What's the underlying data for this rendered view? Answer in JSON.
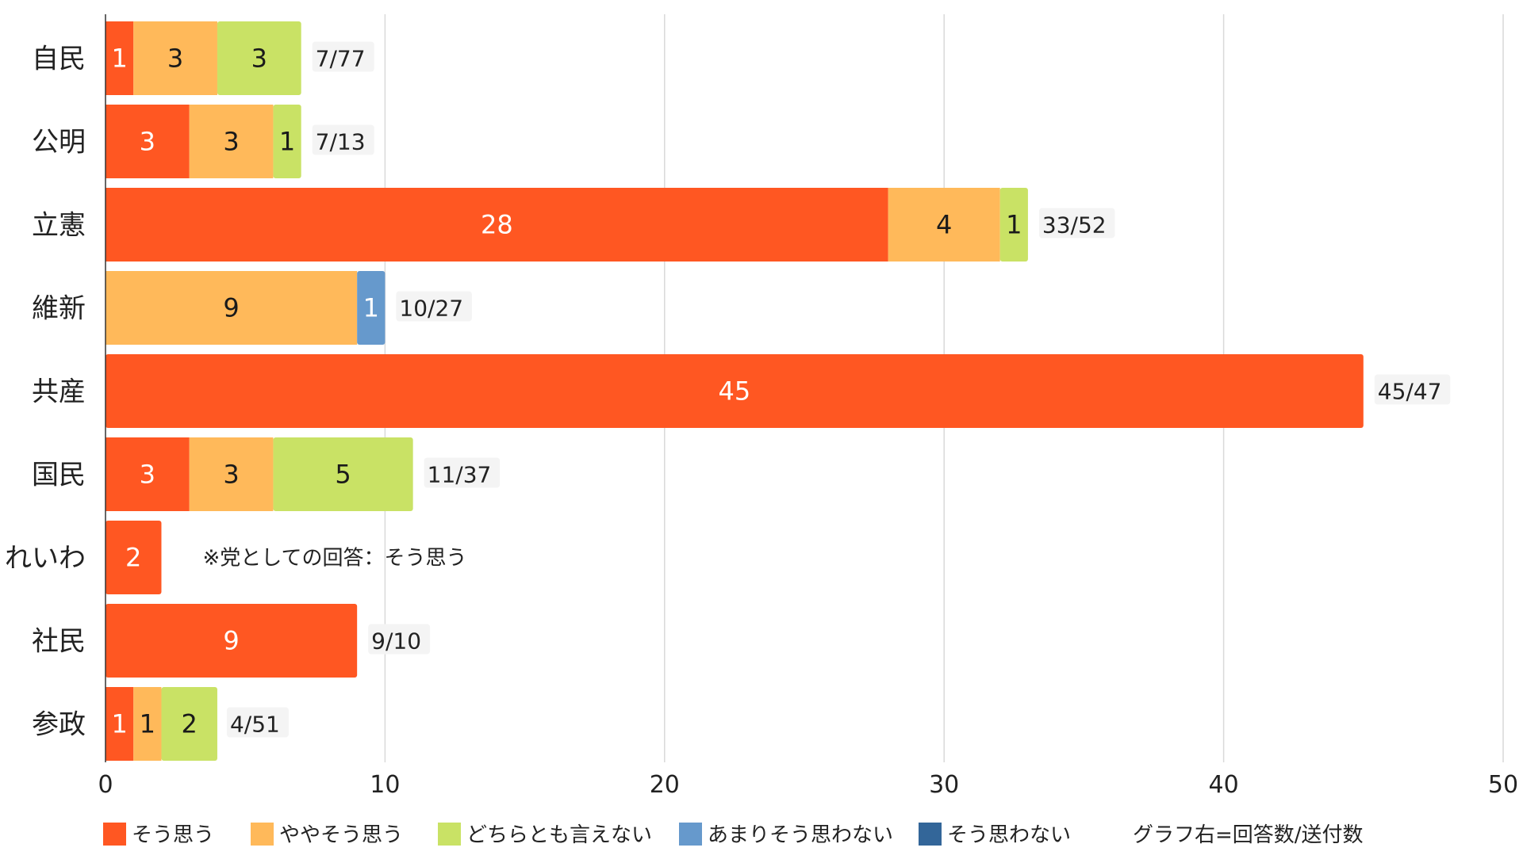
{
  "colors": {
    "sou_omou": "#ff5722",
    "yaya_sou_omou": "#ffb95a",
    "dochira_tomo": "#c9e265",
    "amari": "#6699cc",
    "sou_omowanai": "#336699",
    "grid": "#d9d9d9"
  },
  "chart_data": {
    "type": "bar",
    "orientation": "horizontal",
    "stacked": true,
    "categories": [
      "自民",
      "公明",
      "立憲",
      "維新",
      "共産",
      "国民",
      "れいわ",
      "社民",
      "参政"
    ],
    "series": [
      {
        "name": "そう思う",
        "color": "#ff5722",
        "label_color": "#ffffff",
        "values": [
          1,
          3,
          28,
          0,
          45,
          3,
          2,
          9,
          1
        ]
      },
      {
        "name": "ややそう思う",
        "color": "#ffb95a",
        "label_color": "#1a1a1a",
        "values": [
          3,
          3,
          4,
          9,
          0,
          3,
          0,
          0,
          1
        ]
      },
      {
        "name": "どちらとも言えない",
        "color": "#c9e265",
        "label_color": "#1a1a1a",
        "values": [
          3,
          1,
          1,
          0,
          0,
          5,
          0,
          0,
          2
        ]
      },
      {
        "name": "あまりそう思わない",
        "color": "#6699cc",
        "label_color": "#ffffff",
        "values": [
          0,
          0,
          0,
          1,
          0,
          0,
          0,
          0,
          0
        ]
      },
      {
        "name": "そう思わない",
        "color": "#336699",
        "label_color": "#ffffff",
        "values": [
          0,
          0,
          0,
          0,
          0,
          0,
          0,
          0,
          0
        ]
      }
    ],
    "ratio_labels": [
      "7/77",
      "7/13",
      "33/52",
      "10/27",
      "45/47",
      "11/37",
      "",
      "9/10",
      "4/51"
    ],
    "note": {
      "category": "れいわ",
      "text": "※党としての回答：そう思う"
    },
    "xlim": [
      0,
      50
    ],
    "xticks": [
      0,
      10,
      20,
      30,
      40,
      50
    ],
    "grid": true,
    "legend_position": "bottom",
    "legend_note": "グラフ右=回答数/送付数"
  }
}
